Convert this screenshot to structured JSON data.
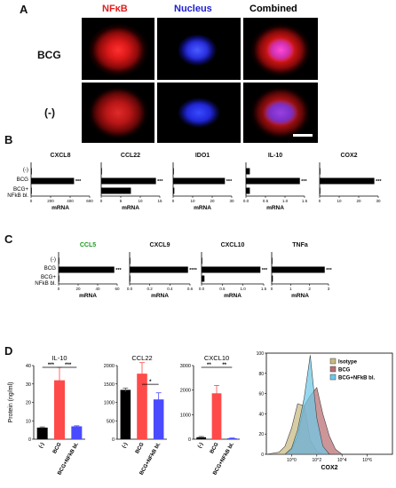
{
  "panels": {
    "A": {
      "letter": "A",
      "columns": [
        "NFκB",
        "Nucleus",
        "Combined"
      ],
      "rows": [
        "BCG",
        "(-)"
      ],
      "header_colors": [
        "#e02020",
        "#2020d0",
        "#000000"
      ]
    },
    "B": {
      "letter": "B",
      "row_labels": [
        "(-)",
        "BCG",
        "BCG+\nNFkB bl."
      ]
    },
    "C": {
      "letter": "C",
      "row_labels": [
        "(-)",
        "BCG",
        "BCG+\nNFkB bl."
      ]
    },
    "D": {
      "letter": "D"
    }
  },
  "chart_data": [
    {
      "panel": "B",
      "type": "bar",
      "title": "CXCL8",
      "xlabel": "mRNA",
      "xticks": [
        "0",
        "200",
        "400",
        "600"
      ],
      "xlim": [
        0,
        600
      ],
      "categories": [
        "(-)",
        "BCG",
        "BCG+ NFkB bl."
      ],
      "values": [
        2,
        440,
        0
      ],
      "significance": "***"
    },
    {
      "panel": "B",
      "type": "bar",
      "title": "CCL22",
      "xlabel": "mRNA",
      "xticks": [
        "0",
        "5",
        "10",
        "15"
      ],
      "xlim": [
        0,
        15
      ],
      "categories": [
        "(-)",
        "BCG",
        "BCG+ NFkB bl."
      ],
      "values": [
        0.1,
        14.0,
        7.6
      ],
      "significance": "***"
    },
    {
      "panel": "B",
      "type": "bar",
      "title": "IDO1",
      "xlabel": "mRNA",
      "xticks": [
        "0",
        "10",
        "20",
        "30"
      ],
      "xlim": [
        0,
        30
      ],
      "categories": [
        "(-)",
        "BCG",
        "BCG+ NFkB bl."
      ],
      "values": [
        0.2,
        26.5,
        0.6
      ],
      "significance": "***"
    },
    {
      "panel": "B",
      "type": "bar",
      "title": "IL-10",
      "xlabel": "mRNA",
      "xticks": [
        "0.0",
        "0.5",
        "1.0",
        "1.5"
      ],
      "xlim": [
        0,
        1.5
      ],
      "categories": [
        "(-)",
        "BCG",
        "BCG+ NFkB bl."
      ],
      "values": [
        0.1,
        1.38,
        0.1
      ],
      "significance": "***"
    },
    {
      "panel": "B",
      "type": "bar",
      "title": "COX2",
      "xlabel": "",
      "xticks": [
        "0",
        "10",
        "20",
        "30"
      ],
      "xlim": [
        0,
        30
      ],
      "categories": [
        "(-)",
        "BCG",
        "BCG+ NFkB bl."
      ],
      "values": [
        0.2,
        28.0,
        0.2
      ],
      "significance": "***"
    },
    {
      "panel": "C",
      "type": "bar",
      "title": "CCL5",
      "title_color": "#1a9a1a",
      "xlabel": "mRNA",
      "xticks": [
        "0",
        "20",
        "40",
        "60"
      ],
      "xlim": [
        0,
        60
      ],
      "categories": [
        "(-)",
        "BCG",
        "BCG+ NFkB bl."
      ],
      "values": [
        0.5,
        57.0,
        0.3
      ],
      "significance": "***"
    },
    {
      "panel": "C",
      "type": "bar",
      "title": "CXCL9",
      "xlabel": "mRNA",
      "xticks": [
        "0.0",
        "0.2",
        "0.4",
        "0.6"
      ],
      "xlim": [
        0,
        0.6
      ],
      "categories": [
        "(-)",
        "BCG",
        "BCG+ NFkB bl."
      ],
      "values": [
        0.002,
        0.58,
        0.004
      ],
      "significance": "****"
    },
    {
      "panel": "C",
      "type": "bar",
      "title": "CXCL10",
      "xlabel": "mRNA",
      "xticks": [
        "0.0",
        "0.5",
        "1.0",
        "1.5"
      ],
      "xlim": [
        0,
        1.5
      ],
      "categories": [
        "(-)",
        "BCG",
        "BCG+ NFkB bl."
      ],
      "values": [
        0.005,
        1.42,
        0.07
      ],
      "significance": "***"
    },
    {
      "panel": "C",
      "type": "bar",
      "title": "TNFa",
      "xlabel": "mRNA",
      "xticks": [
        "0",
        "1",
        "2",
        "3"
      ],
      "xlim": [
        0,
        3
      ],
      "categories": [
        "(-)",
        "BCG",
        "BCG+ NFkB bl."
      ],
      "values": [
        0.03,
        2.8,
        0.06
      ],
      "significance": "***"
    },
    {
      "panel": "D",
      "type": "bar",
      "title": "IL-10",
      "ylabel": "Protein (ng/ml)",
      "yticks": [
        "0",
        "10",
        "20",
        "30",
        "40"
      ],
      "ylim": [
        0,
        40
      ],
      "categories": [
        "(-)",
        "BCG",
        "BCG+NFkB bl."
      ],
      "values": [
        6.3,
        32.0,
        7.0
      ],
      "errors": [
        0.4,
        7.0,
        0.3
      ],
      "colors": [
        "#000000",
        "#ff4a4a",
        "#4a4aff"
      ],
      "significance": [
        "***",
        "***"
      ]
    },
    {
      "panel": "D",
      "type": "bar",
      "title": "CCL22",
      "yticks": [
        "0",
        "500",
        "1000",
        "1500",
        "2000"
      ],
      "ylim": [
        0,
        2000
      ],
      "categories": [
        "(-)",
        "BCG",
        "BCG+NFkB bl."
      ],
      "values": [
        1340,
        1780,
        1080
      ],
      "errors": [
        50,
        300,
        180
      ],
      "colors": [
        "#000000",
        "#ff4a4a",
        "#4a4aff"
      ],
      "significance": [
        "*"
      ]
    },
    {
      "panel": "D",
      "type": "bar",
      "title": "CXCL10",
      "yticks": [
        "0",
        "1000",
        "2000",
        "3000"
      ],
      "ylim": [
        0,
        3000
      ],
      "categories": [
        "(-)",
        "BCG",
        "BCG+NFkB bl."
      ],
      "values": [
        80,
        1870,
        40
      ],
      "errors": [
        30,
        320,
        10
      ],
      "colors": [
        "#000000",
        "#ff4a4a",
        "#4a4aff"
      ],
      "significance": [
        "**",
        "**"
      ]
    },
    {
      "panel": "D",
      "type": "area",
      "title": "",
      "xlabel": "COX2",
      "xscale": "log",
      "xlim": [
        0.01,
        100000000
      ],
      "ylim": [
        0,
        100
      ],
      "yticks": [
        "0",
        "20",
        "40",
        "60",
        "80",
        "100"
      ],
      "xticks": [
        "10^0",
        "10^2",
        "10^4",
        "10^6"
      ],
      "legend": [
        "Isotype",
        "BCG",
        "BCG+NFkB bl."
      ],
      "legend_placement": "top-right",
      "series": [
        {
          "name": "Isotype",
          "color": "#c8b880",
          "x": [
            0.01,
            0.1,
            0.3,
            1,
            3,
            10,
            30,
            100,
            300
          ],
          "y": [
            0,
            2,
            8,
            26,
            50,
            48,
            14,
            3,
            0
          ]
        },
        {
          "name": "BCG",
          "color": "#b86e72",
          "x": [
            0.3,
            1,
            3,
            10,
            30,
            100,
            300,
            1000,
            3000,
            10000
          ],
          "y": [
            0,
            5,
            18,
            48,
            58,
            66,
            40,
            18,
            5,
            0
          ]
        },
        {
          "name": "BCG+NFkB bl.",
          "color": "#6ec8e8",
          "x": [
            0.3,
            1,
            3,
            10,
            30,
            60,
            100,
            300,
            1000
          ],
          "y": [
            0,
            6,
            24,
            56,
            98,
            62,
            36,
            8,
            0
          ]
        }
      ]
    }
  ]
}
